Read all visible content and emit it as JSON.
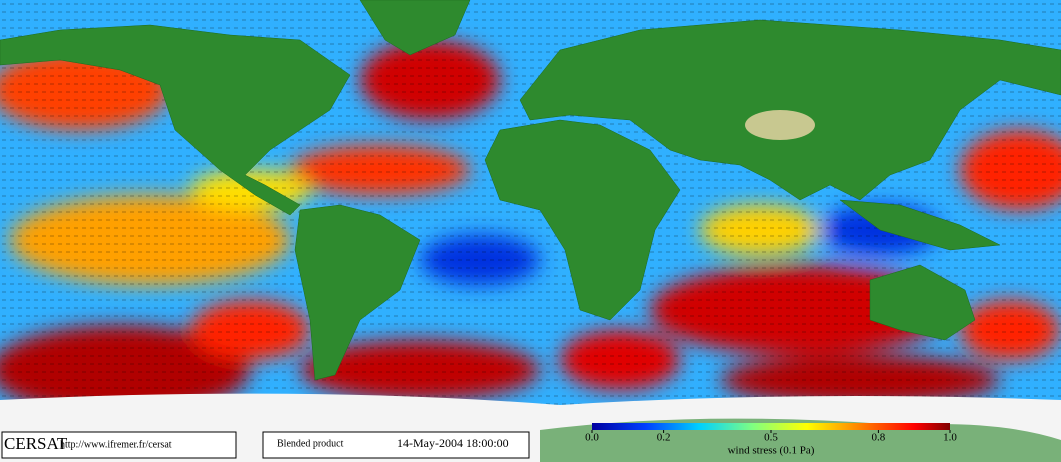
{
  "footer": {
    "logo": "CERSAT",
    "url": "http://www.ifremer.fr/cersat",
    "product": "Blended product",
    "date": "14-May-2004 18:00:00"
  },
  "colorbar": {
    "label": "wind stress (0.1 Pa)",
    "lim": [
      0,
      1
    ],
    "ticks": [
      {
        "value": 0,
        "label": "0.0"
      },
      0.2,
      0.5,
      0.8,
      {
        "value": 1,
        "label": "1.0"
      }
    ]
  }
}
